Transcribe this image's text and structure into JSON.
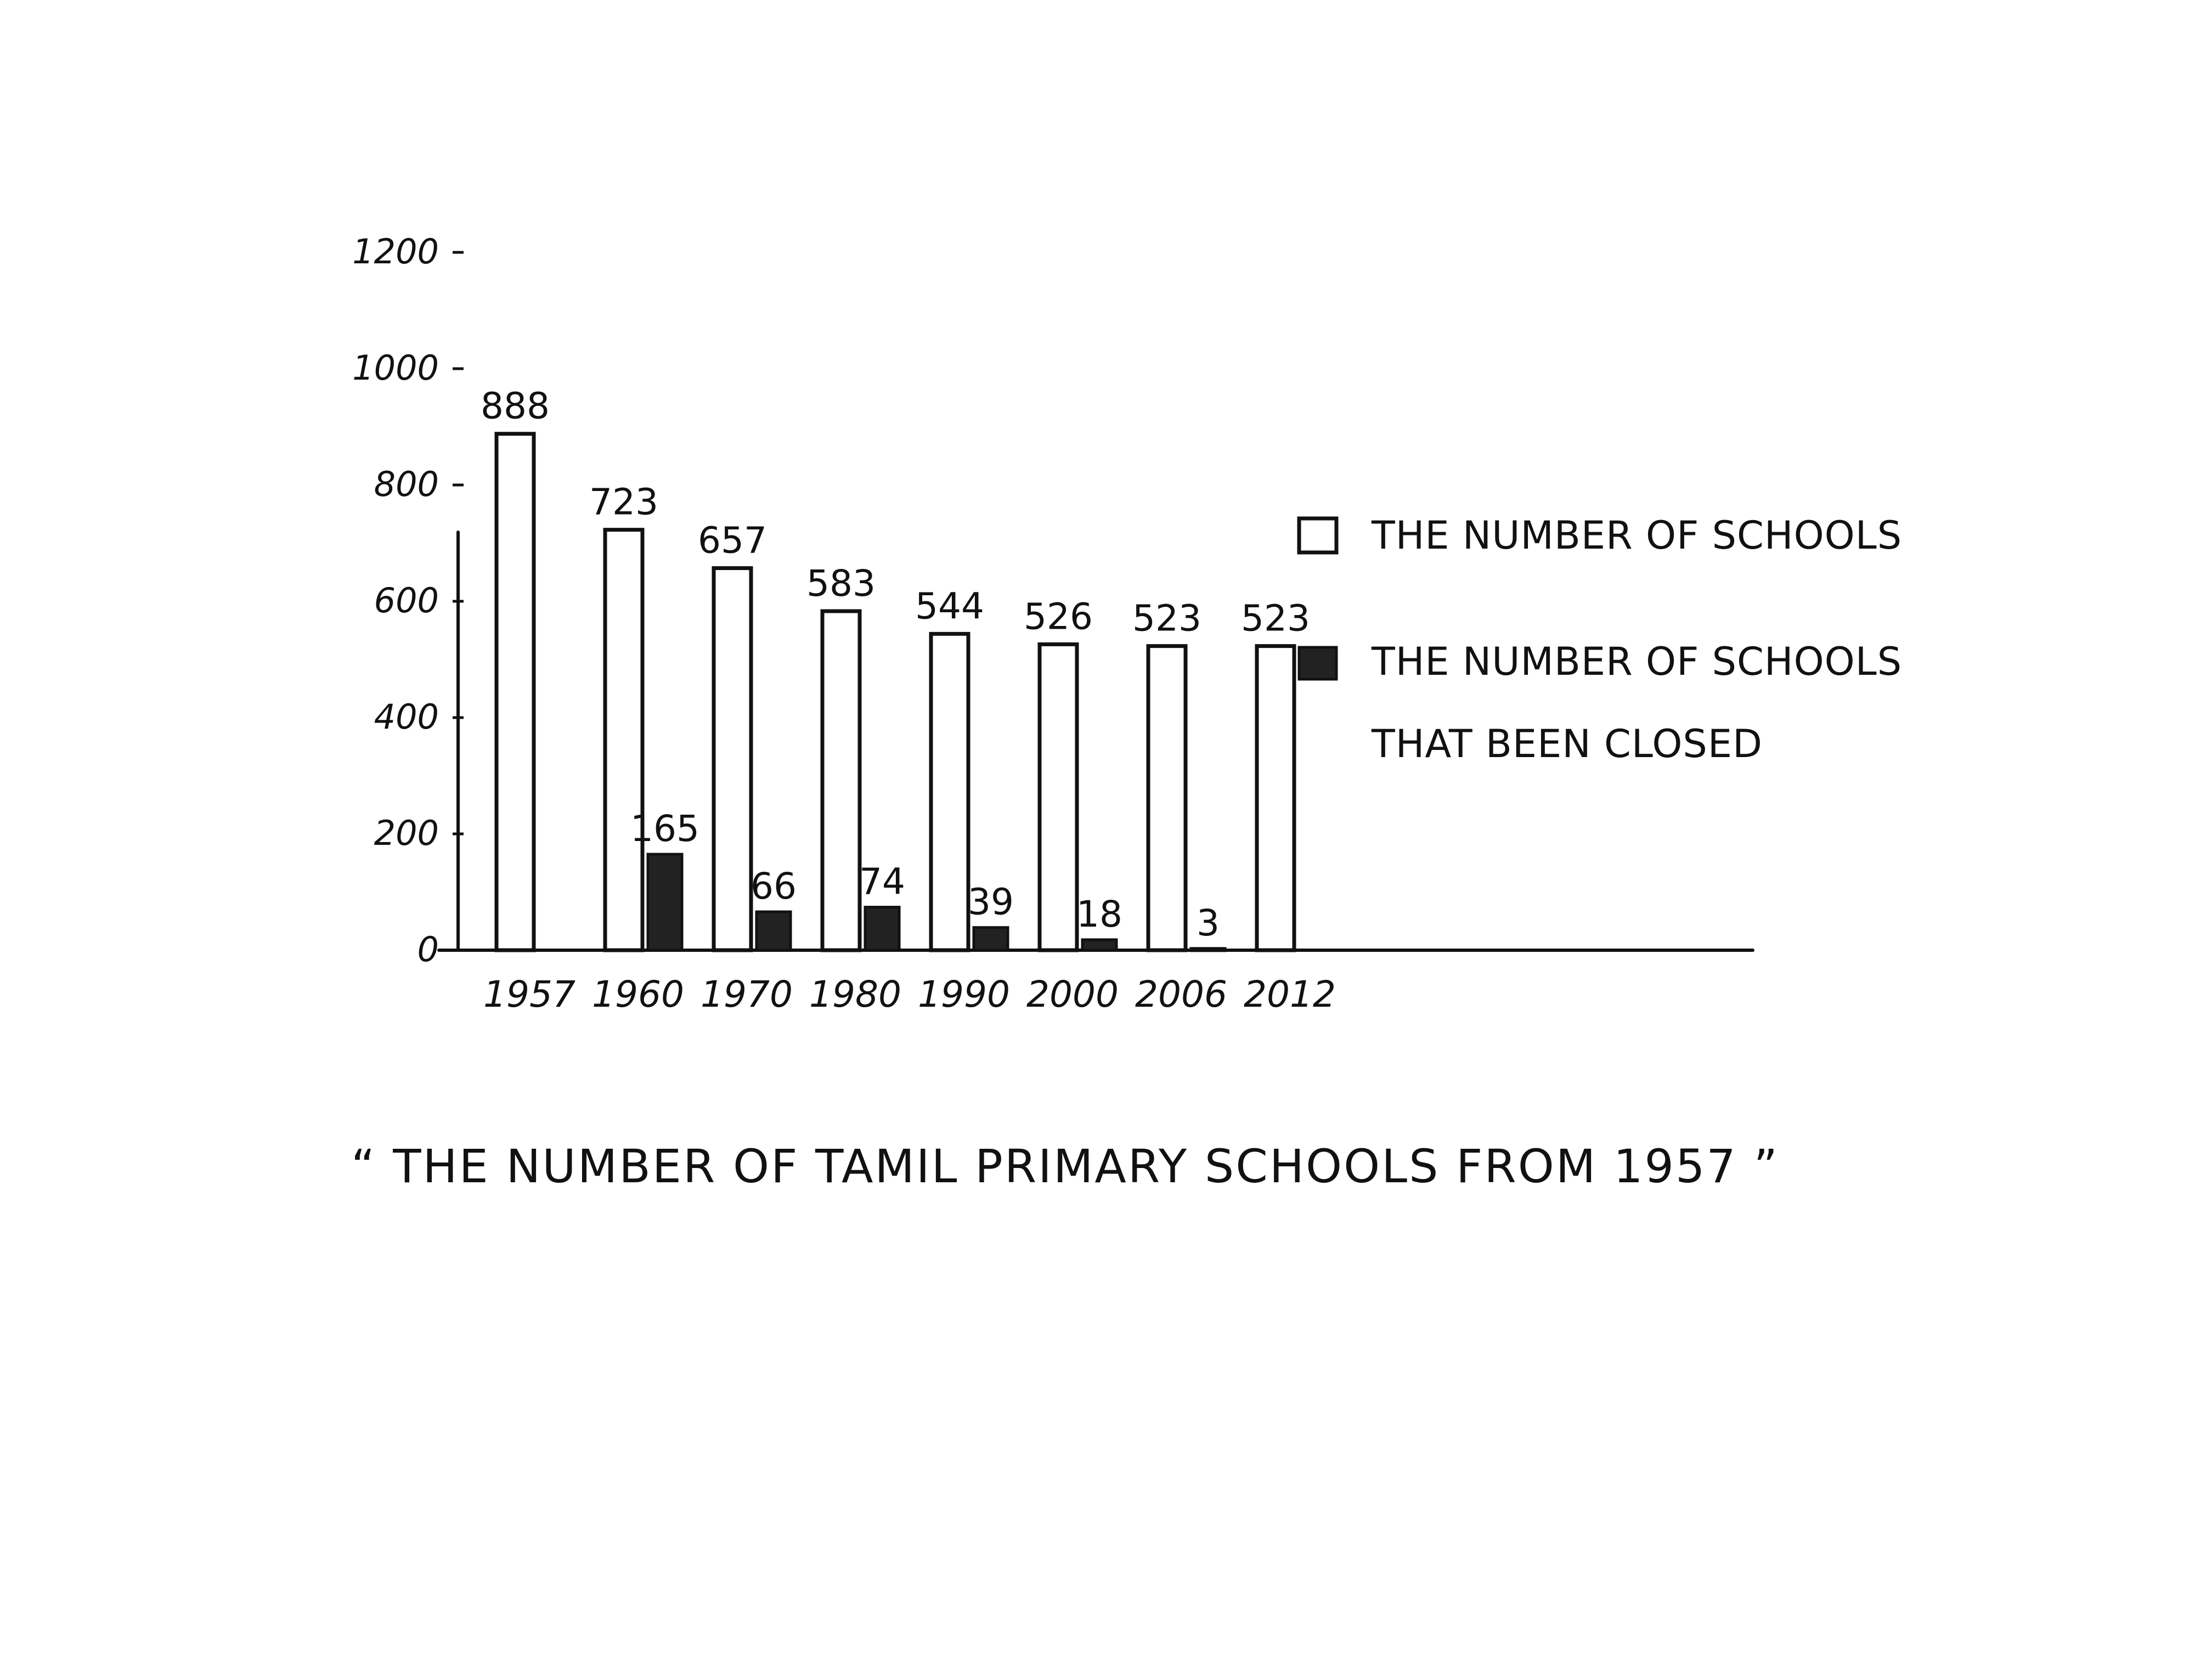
{
  "chart_data": {
    "type": "bar",
    "categories": [
      "1957",
      "1960",
      "1970",
      "1980",
      "1990",
      "2000",
      "2006",
      "2012"
    ],
    "series": [
      {
        "name": "THE NUMBER OF SCHOOLS",
        "values": [
          888,
          723,
          657,
          583,
          544,
          526,
          523,
          523
        ],
        "color": "#ffffff"
      },
      {
        "name": "THE NUMBER OF SCHOOLS THAT BEEN CLOSED",
        "values": [
          null,
          165,
          66,
          74,
          39,
          18,
          3,
          null
        ],
        "color": "#222222"
      }
    ],
    "yticks": [
      0,
      200,
      400,
      600,
      800,
      1000,
      1200
    ],
    "ytick_labels": [
      "0",
      "200",
      "400",
      "600",
      "800",
      "1000",
      "1200"
    ],
    "ylim": [
      0,
      1300
    ],
    "grid": false,
    "legend": {
      "placement": "top-right",
      "entries": [
        {
          "lines": [
            "THE NUMBER OF SCHOOLS"
          ]
        },
        {
          "lines": [
            "THE NUMBER OF SCHOOLS",
            "THAT BEEN CLOSED"
          ]
        }
      ]
    },
    "caption": "“ THE NUMBER OF TAMIL PRIMARY SCHOOLS FROM 1957 ”"
  }
}
